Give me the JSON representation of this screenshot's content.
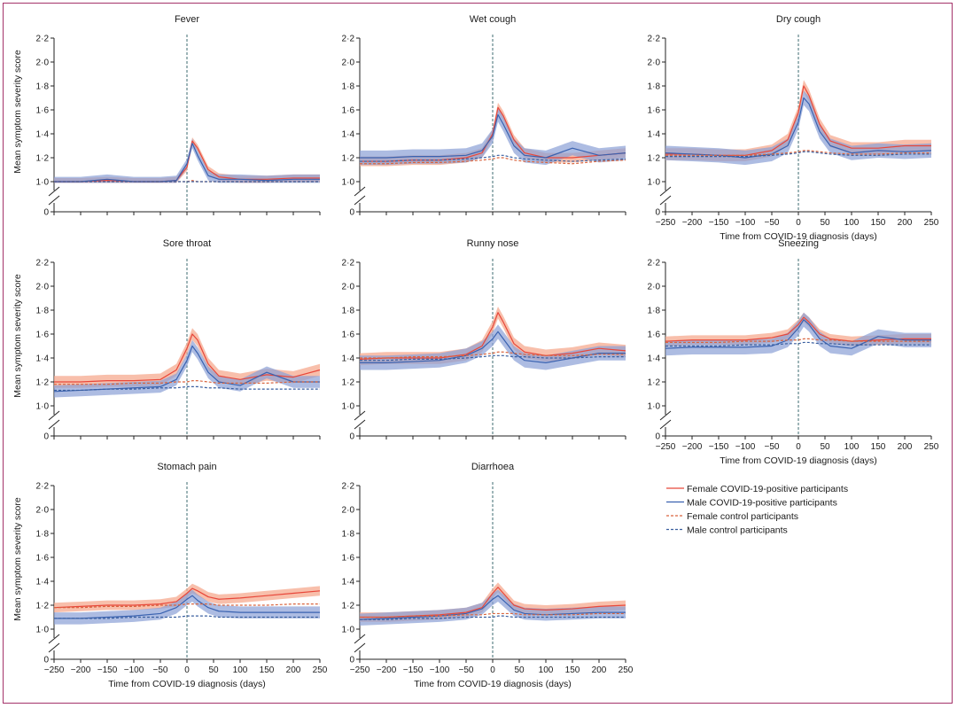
{
  "chart_data": {
    "type": "line",
    "xlabel": "Time from COVID-19 diagnosis (days)",
    "ylabel": "Mean symptom severity score",
    "xlim": [
      -250,
      250
    ],
    "xticks": [
      -250,
      -200,
      -150,
      -100,
      -50,
      0,
      50,
      100,
      150,
      200,
      250
    ],
    "xtick_labels": [
      "−250",
      "−200",
      "−150",
      "−100",
      "−50",
      "0",
      "50",
      "100",
      "150",
      "200",
      "250"
    ],
    "ylim": [
      1.0,
      2.2
    ],
    "yticks": [
      1.0,
      1.2,
      1.4,
      1.6,
      1.8,
      2.0,
      2.2
    ],
    "ytick_labels": [
      "1·0",
      "1·2",
      "1·4",
      "1·6",
      "1·8",
      "2·0",
      "2·2"
    ],
    "y_break_label": "0",
    "colors": {
      "female": "#e8473a",
      "female_band": "#f6a98f",
      "male": "#3a62b0",
      "male_band": "#8a9fd6",
      "female_control": "#d9653f",
      "male_control": "#3a5f9f",
      "diagnosis_line": "#3e6b72",
      "axis": "#222222"
    },
    "legend": [
      {
        "label": "Female COVID-19-positive participants",
        "style": "solid",
        "color": "#e8473a"
      },
      {
        "label": "Male COVID-19-positive participants",
        "style": "solid",
        "color": "#3a62b0"
      },
      {
        "label": "Female control participants",
        "style": "dashed",
        "color": "#d9653f"
      },
      {
        "label": "Male control participants",
        "style": "dashed",
        "color": "#3a5f9f"
      }
    ],
    "panels": [
      {
        "title": "Fever",
        "x": [
          -250,
          -200,
          -150,
          -100,
          -50,
          -20,
          0,
          10,
          20,
          40,
          60,
          100,
          150,
          200,
          250
        ],
        "series": [
          {
            "name": "Female COVID-19-positive participants",
            "values": [
              1.0,
              1.0,
              1.01,
              1.0,
              1.0,
              1.01,
              1.12,
              1.34,
              1.28,
              1.1,
              1.04,
              1.02,
              1.02,
              1.03,
              1.03
            ],
            "ci": 0.03
          },
          {
            "name": "Male COVID-19-positive participants",
            "values": [
              1.0,
              1.0,
              1.02,
              1.0,
              1.0,
              1.01,
              1.15,
              1.32,
              1.22,
              1.05,
              1.02,
              1.02,
              1.01,
              1.02,
              1.02
            ],
            "ci": 0.04
          },
          {
            "name": "Female control participants",
            "values": [
              1.0,
              1.0,
              1.0,
              1.0,
              1.0,
              1.0,
              1.0,
              1.01,
              1.0,
              1.0,
              1.0,
              1.0,
              1.0,
              1.0,
              1.0
            ]
          },
          {
            "name": "Male control participants",
            "values": [
              1.0,
              1.0,
              1.0,
              1.0,
              1.0,
              1.0,
              1.0,
              1.0,
              1.0,
              1.0,
              1.0,
              1.0,
              1.0,
              1.0,
              1.0
            ]
          }
        ]
      },
      {
        "title": "Wet cough",
        "x": [
          -250,
          -200,
          -150,
          -100,
          -50,
          -20,
          0,
          10,
          20,
          40,
          60,
          100,
          150,
          200,
          250
        ],
        "series": [
          {
            "name": "Female COVID-19-positive participants",
            "values": [
              1.17,
              1.17,
              1.18,
              1.18,
              1.2,
              1.24,
              1.4,
              1.62,
              1.55,
              1.35,
              1.24,
              1.2,
              1.2,
              1.22,
              1.24
            ],
            "ci": 0.04
          },
          {
            "name": "Male COVID-19-positive participants",
            "values": [
              1.2,
              1.2,
              1.21,
              1.21,
              1.22,
              1.26,
              1.38,
              1.56,
              1.48,
              1.3,
              1.22,
              1.2,
              1.28,
              1.22,
              1.24
            ],
            "ci": 0.06
          },
          {
            "name": "Female control participants",
            "values": [
              1.15,
              1.15,
              1.16,
              1.16,
              1.17,
              1.18,
              1.19,
              1.2,
              1.2,
              1.18,
              1.17,
              1.16,
              1.15,
              1.17,
              1.18
            ]
          },
          {
            "name": "Male control participants",
            "values": [
              1.17,
              1.17,
              1.18,
              1.18,
              1.19,
              1.2,
              1.21,
              1.22,
              1.22,
              1.2,
              1.19,
              1.18,
              1.17,
              1.18,
              1.19
            ]
          }
        ]
      },
      {
        "title": "Dry cough",
        "x": [
          -250,
          -200,
          -150,
          -100,
          -50,
          -20,
          0,
          10,
          20,
          40,
          60,
          100,
          150,
          200,
          250
        ],
        "series": [
          {
            "name": "Female COVID-19-positive participants",
            "values": [
              1.23,
              1.23,
              1.22,
              1.22,
              1.26,
              1.35,
              1.58,
              1.8,
              1.72,
              1.48,
              1.34,
              1.28,
              1.28,
              1.3,
              1.3
            ],
            "ci": 0.05
          },
          {
            "name": "Male COVID-19-positive participants",
            "values": [
              1.24,
              1.23,
              1.22,
              1.2,
              1.23,
              1.3,
              1.5,
              1.7,
              1.65,
              1.42,
              1.3,
              1.24,
              1.26,
              1.25,
              1.26
            ],
            "ci": 0.06
          },
          {
            "name": "Female control participants",
            "values": [
              1.22,
              1.22,
              1.22,
              1.22,
              1.23,
              1.24,
              1.25,
              1.26,
              1.26,
              1.25,
              1.24,
              1.23,
              1.23,
              1.24,
              1.24
            ]
          },
          {
            "name": "Male control participants",
            "values": [
              1.21,
              1.21,
              1.21,
              1.21,
              1.22,
              1.23,
              1.24,
              1.25,
              1.25,
              1.24,
              1.23,
              1.22,
              1.22,
              1.23,
              1.23
            ]
          }
        ]
      },
      {
        "title": "Sore throat",
        "x": [
          -250,
          -200,
          -150,
          -100,
          -50,
          -20,
          0,
          10,
          20,
          40,
          60,
          100,
          150,
          200,
          250
        ],
        "series": [
          {
            "name": "Female COVID-19-positive participants",
            "values": [
              1.2,
              1.2,
              1.21,
              1.21,
              1.22,
              1.3,
              1.48,
              1.6,
              1.55,
              1.35,
              1.25,
              1.22,
              1.26,
              1.24,
              1.3
            ],
            "ci": 0.05
          },
          {
            "name": "Male COVID-19-positive participants",
            "values": [
              1.12,
              1.13,
              1.14,
              1.15,
              1.16,
              1.22,
              1.38,
              1.5,
              1.44,
              1.28,
              1.2,
              1.17,
              1.28,
              1.2,
              1.2
            ],
            "ci": 0.05
          },
          {
            "name": "Female control participants",
            "values": [
              1.18,
              1.18,
              1.18,
              1.19,
              1.19,
              1.2,
              1.2,
              1.21,
              1.21,
              1.2,
              1.19,
              1.19,
              1.19,
              1.2,
              1.2
            ]
          },
          {
            "name": "Male control participants",
            "values": [
              1.13,
              1.13,
              1.14,
              1.14,
              1.15,
              1.15,
              1.16,
              1.16,
              1.16,
              1.15,
              1.15,
              1.14,
              1.14,
              1.14,
              1.14
            ]
          }
        ]
      },
      {
        "title": "Runny nose",
        "x": [
          -250,
          -200,
          -150,
          -100,
          -50,
          -20,
          0,
          10,
          20,
          40,
          60,
          100,
          150,
          200,
          250
        ],
        "series": [
          {
            "name": "Female COVID-19-positive participants",
            "values": [
              1.39,
              1.4,
              1.4,
              1.4,
              1.43,
              1.5,
              1.66,
              1.78,
              1.7,
              1.52,
              1.45,
              1.42,
              1.44,
              1.48,
              1.46
            ],
            "ci": 0.05
          },
          {
            "name": "Male COVID-19-positive participants",
            "values": [
              1.36,
              1.36,
              1.37,
              1.38,
              1.42,
              1.48,
              1.56,
              1.62,
              1.56,
              1.44,
              1.38,
              1.36,
              1.4,
              1.44,
              1.44
            ],
            "ci": 0.06
          },
          {
            "name": "Female control participants",
            "values": [
              1.4,
              1.4,
              1.41,
              1.41,
              1.42,
              1.43,
              1.44,
              1.45,
              1.45,
              1.44,
              1.43,
              1.42,
              1.42,
              1.43,
              1.43
            ]
          },
          {
            "name": "Male control participants",
            "values": [
              1.38,
              1.38,
              1.39,
              1.39,
              1.4,
              1.41,
              1.42,
              1.42,
              1.42,
              1.41,
              1.41,
              1.4,
              1.4,
              1.41,
              1.41
            ]
          }
        ]
      },
      {
        "title": "Sneezing",
        "x": [
          -250,
          -200,
          -150,
          -100,
          -50,
          -20,
          0,
          10,
          20,
          40,
          60,
          100,
          150,
          200,
          250
        ],
        "series": [
          {
            "name": "Female COVID-19-positive participants",
            "values": [
              1.54,
              1.55,
              1.55,
              1.55,
              1.57,
              1.6,
              1.68,
              1.74,
              1.7,
              1.6,
              1.56,
              1.54,
              1.55,
              1.56,
              1.56
            ],
            "ci": 0.04
          },
          {
            "name": "Male COVID-19-positive participants",
            "values": [
              1.48,
              1.49,
              1.49,
              1.49,
              1.5,
              1.55,
              1.65,
              1.72,
              1.68,
              1.56,
              1.5,
              1.48,
              1.58,
              1.55,
              1.55
            ],
            "ci": 0.06
          },
          {
            "name": "Female control participants",
            "values": [
              1.53,
              1.53,
              1.53,
              1.54,
              1.54,
              1.55,
              1.55,
              1.56,
              1.56,
              1.55,
              1.55,
              1.54,
              1.54,
              1.54,
              1.54
            ]
          },
          {
            "name": "Male control participants",
            "values": [
              1.5,
              1.5,
              1.5,
              1.51,
              1.51,
              1.52,
              1.52,
              1.53,
              1.53,
              1.52,
              1.52,
              1.51,
              1.51,
              1.51,
              1.51
            ]
          }
        ]
      },
      {
        "title": "Stomach pain",
        "x": [
          -250,
          -200,
          -150,
          -100,
          -50,
          -20,
          0,
          10,
          20,
          40,
          60,
          100,
          150,
          200,
          250
        ],
        "series": [
          {
            "name": "Female COVID-19-positive participants",
            "values": [
              1.18,
              1.19,
              1.2,
              1.2,
              1.21,
              1.23,
              1.3,
              1.34,
              1.32,
              1.27,
              1.25,
              1.26,
              1.28,
              1.3,
              1.32
            ],
            "ci": 0.04
          },
          {
            "name": "Male COVID-19-positive participants",
            "values": [
              1.09,
              1.09,
              1.1,
              1.11,
              1.13,
              1.18,
              1.25,
              1.28,
              1.24,
              1.18,
              1.15,
              1.14,
              1.14,
              1.14,
              1.14
            ],
            "ci": 0.05
          },
          {
            "name": "Female control participants",
            "values": [
              1.18,
              1.18,
              1.19,
              1.19,
              1.2,
              1.2,
              1.21,
              1.21,
              1.21,
              1.21,
              1.2,
              1.2,
              1.2,
              1.21,
              1.21
            ]
          },
          {
            "name": "Male control participants",
            "values": [
              1.09,
              1.09,
              1.09,
              1.1,
              1.1,
              1.1,
              1.11,
              1.11,
              1.11,
              1.11,
              1.1,
              1.1,
              1.1,
              1.1,
              1.1
            ]
          }
        ]
      },
      {
        "title": "Diarrhoea",
        "x": [
          -250,
          -200,
          -150,
          -100,
          -50,
          -20,
          0,
          10,
          20,
          40,
          60,
          100,
          150,
          200,
          250
        ],
        "series": [
          {
            "name": "Female COVID-19-positive participants",
            "values": [
              1.1,
              1.1,
              1.11,
              1.12,
              1.14,
              1.18,
              1.3,
              1.35,
              1.3,
              1.2,
              1.17,
              1.16,
              1.17,
              1.19,
              1.2
            ],
            "ci": 0.04
          },
          {
            "name": "Male COVID-19-positive participants",
            "values": [
              1.08,
              1.09,
              1.1,
              1.11,
              1.13,
              1.17,
              1.25,
              1.28,
              1.24,
              1.16,
              1.13,
              1.12,
              1.13,
              1.14,
              1.14
            ],
            "ci": 0.05
          },
          {
            "name": "Female control participants",
            "values": [
              1.1,
              1.1,
              1.11,
              1.11,
              1.12,
              1.12,
              1.13,
              1.13,
              1.13,
              1.13,
              1.12,
              1.12,
              1.12,
              1.13,
              1.13
            ]
          },
          {
            "name": "Male control participants",
            "values": [
              1.08,
              1.08,
              1.09,
              1.09,
              1.1,
              1.1,
              1.1,
              1.11,
              1.11,
              1.1,
              1.1,
              1.1,
              1.1,
              1.1,
              1.1
            ]
          }
        ]
      }
    ]
  }
}
